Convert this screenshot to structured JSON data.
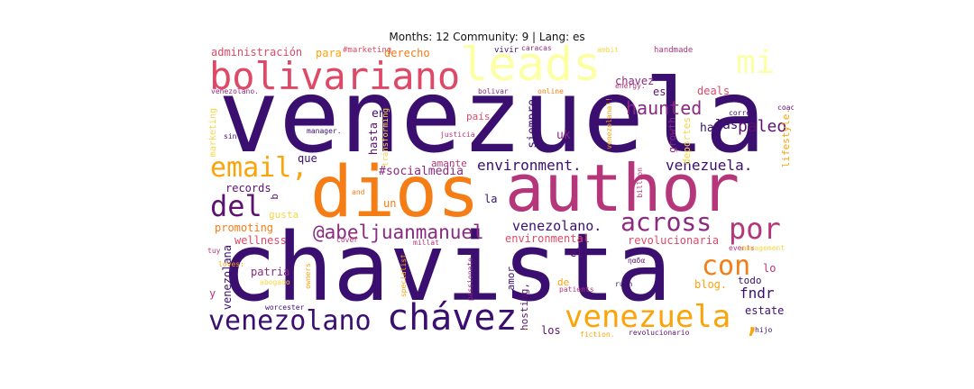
{
  "title": "Months: 12 Community: 9 | Lang: es",
  "colors": {
    "deep_purple": "#3b0f70",
    "plum": "#5c126e",
    "magenta": "#8c2981",
    "crimson": "#b5367a",
    "rose": "#de4968",
    "orange": "#f57d15",
    "amber": "#fba40a",
    "yellow": "#f6d746",
    "pale_yellow": "#fcffa4"
  },
  "words": {
    "venezuela_big": "venezuela",
    "chavista": "chavista",
    "author": "author",
    "dios": "dios",
    "leads": "leads",
    "bolivariano": "bolivariano",
    "mi": "mi",
    "email": "email,",
    "del": "del",
    "chavez_accent": "chávez",
    "venezolano": "venezolano",
    "venezuela_orange": "venezuela",
    "comma_orange": ",",
    "con": "con",
    "por": "por",
    "across": "across",
    "haunted": "haunted",
    "paleo": "paleo",
    "las": "las",
    "environment": "environment.",
    "venezuela_dot": "venezuela.",
    "abeljuanmanuel": "@abeljuanmanuel",
    "venezolano_dot": "venezolano.",
    "administracion": "administración",
    "marketing_hash": "#marketing",
    "para": "para",
    "derecho": "derecho",
    "vivir": "vivir",
    "caracas": "caracas",
    "ambit": "ambit",
    "handmade": "handmade",
    "venezolano_small": "venezolano.",
    "bolivar": "bolivar",
    "online": "online",
    "chavez": "chavez",
    "energy": "energy.",
    "es": "es",
    "deals": "deals",
    "en": "en",
    "pais": "país",
    "siempre": "siempre",
    "uk": "uk",
    "hay": "hay",
    "growth": "growth",
    "deportes": "deportes",
    "lifestyle": "lifestyle.",
    "correo": "correo",
    "coach": "coach,",
    "venezolana_excl": "venezolana!!",
    "marketing": "marketing",
    "sin": "sin",
    "manager": "manager.",
    "hasta": "hasta",
    "transforming": "transforming",
    "justicia": "justicia",
    "que": "que",
    "amante": "amante",
    "socialmedia": "#socialmedia",
    "records": "records",
    "and": "and",
    "un": "un",
    "la": "la",
    "q": "q",
    "gusta": "gusta",
    "billion": "billion",
    "promoting": "promoting",
    "wellness": "wellness",
    "environmental": "environmental",
    "revolucionaria": "revolucionaria",
    "tuy": "tuy",
    "cover": "cover",
    "millat": "millat",
    "events": "events",
    "management": "management",
    "venezolana": "venezolana",
    "loves": "loves:",
    "patria": "patria",
    "el": "el",
    "lo": "lo",
    "abogado": "abogado",
    "owners": "owners",
    "passionate": "passionate",
    "specialist": "specialist",
    "amor": "amor",
    "hosting": "hosting,",
    "patients": "patients",
    "nada": "ηαδα",
    "todo": "todo",
    "y": "y",
    "de": "de",
    "rush": "rush",
    "blog": "blog.",
    "fndr": "fndr",
    "estate": "estate",
    "worcester": "worcester",
    "los": "los",
    "fiction": "fiction.",
    "revolucionario": "revolucionario",
    "hijo": "hijo",
    "comma_small": ","
  }
}
